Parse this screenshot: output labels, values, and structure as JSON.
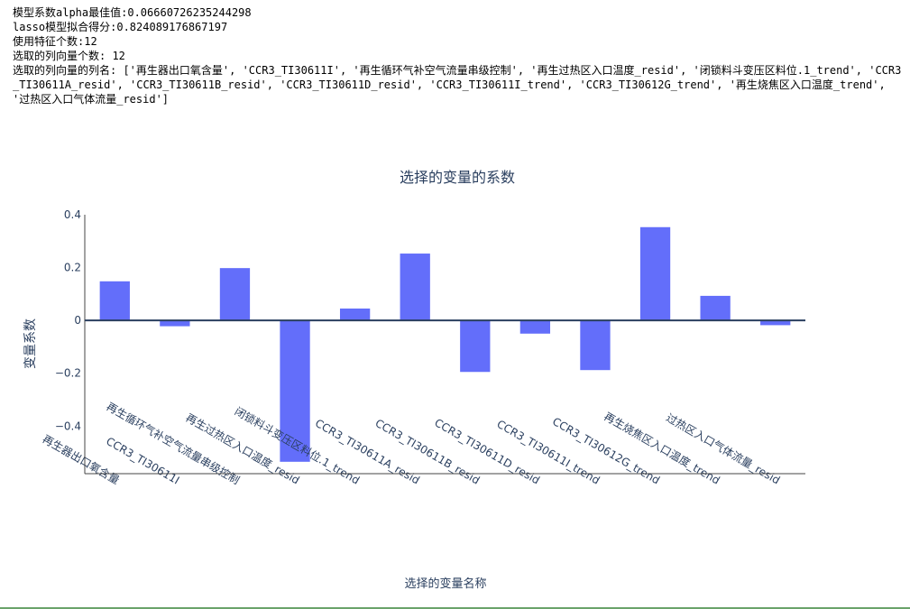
{
  "info": {
    "alpha_line": "模型系数alpha最佳值:0.06660726235244298",
    "score_line": "lasso模型拟合得分:0.824089176867197",
    "feature_count_line": "使用特征个数:12",
    "column_count_line": "选取的列向量个数: 12",
    "column_names_line": "选取的列向量的列名: ['再生器出口氧含量', 'CCR3_TI30611I', '再生循环气补空气流量串级控制', '再生过热区入口温度_resid', '闭锁料斗变压区料位.1_trend', 'CCR3_TI30611A_resid', 'CCR3_TI30611B_resid', 'CCR3_TI30611D_resid', 'CCR3_TI30611I_trend', 'CCR3_TI30612G_trend', '再生烧焦区入口温度_trend', '过热区入口气体流量_resid']"
  },
  "chart_data": {
    "type": "bar",
    "title": "选择的变量的系数",
    "xlabel": "选择的变量名称",
    "ylabel": "变量系数",
    "categories": [
      "再生器出口氧含量",
      "CCR3_TI30611I",
      "再生循环气补空气流量串级控制",
      "再生过热区入口温度_resid",
      "闭锁料斗变压区料位.1_trend",
      "CCR3_TI30611A_resid",
      "CCR3_TI30611B_resid",
      "CCR3_TI30611D_resid",
      "CCR3_TI30611I_trend",
      "CCR3_TI30612G_trend",
      "再生烧焦区入口温度_trend",
      "过热区入口气体流量_resid"
    ],
    "values": [
      0.148,
      -0.022,
      0.198,
      -0.535,
      0.045,
      0.253,
      -0.195,
      -0.05,
      -0.188,
      0.353,
      0.093,
      -0.018
    ],
    "yticks": [
      0.4,
      0.2,
      0,
      -0.2,
      -0.4
    ],
    "ytick_labels": [
      "0.4",
      "0.2",
      "0",
      "−0.2",
      "−0.4"
    ],
    "ylim": [
      -0.58,
      0.4
    ],
    "bar_color": "#636efa",
    "grid": false
  }
}
